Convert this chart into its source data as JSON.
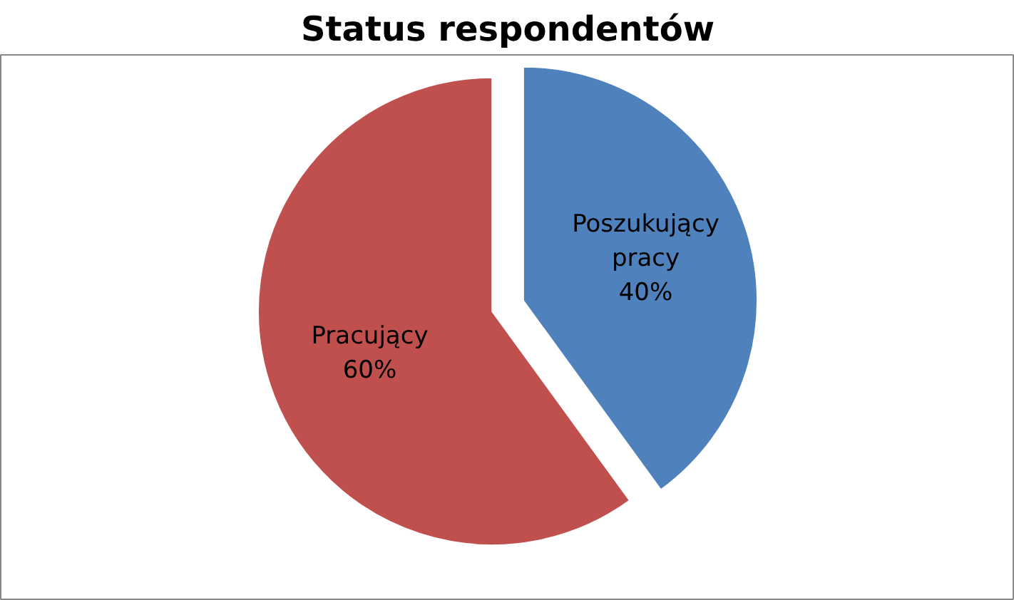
{
  "chart_data": {
    "type": "pie",
    "title": "Status respondentów",
    "categories": [
      "Poszukujący pracy",
      "Pracujący"
    ],
    "values": [
      40,
      60
    ],
    "colors": [
      "#4f81bd",
      "#c0504d"
    ],
    "value_labels": [
      "40%",
      "60%"
    ]
  }
}
